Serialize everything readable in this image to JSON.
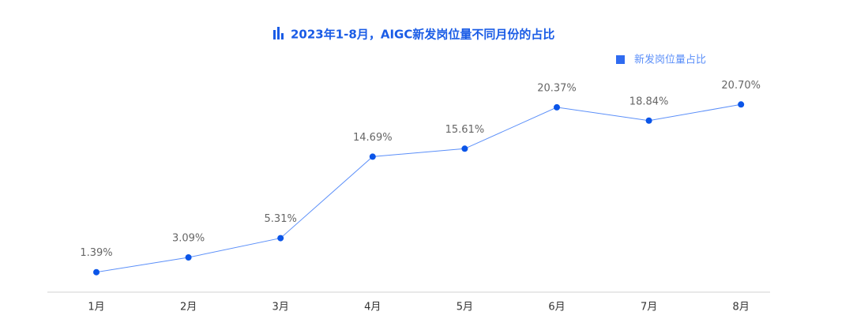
{
  "chart_data": {
    "type": "line",
    "title": "2023年1-8月，AIGC新发岗位量不同月份的占比",
    "categories": [
      "1月",
      "2月",
      "3月",
      "4月",
      "5月",
      "6月",
      "7月",
      "8月"
    ],
    "series": [
      {
        "name": "新发岗位量占比",
        "color": "#2f6bf0",
        "values": [
          1.39,
          3.09,
          5.31,
          14.69,
          15.61,
          20.37,
          18.84,
          20.7
        ],
        "value_labels": [
          "1.39%",
          "3.09%",
          "5.31%",
          "14.69%",
          "15.61%",
          "20.37%",
          "18.84%",
          "20.70%"
        ]
      }
    ],
    "legend": "top-right"
  }
}
